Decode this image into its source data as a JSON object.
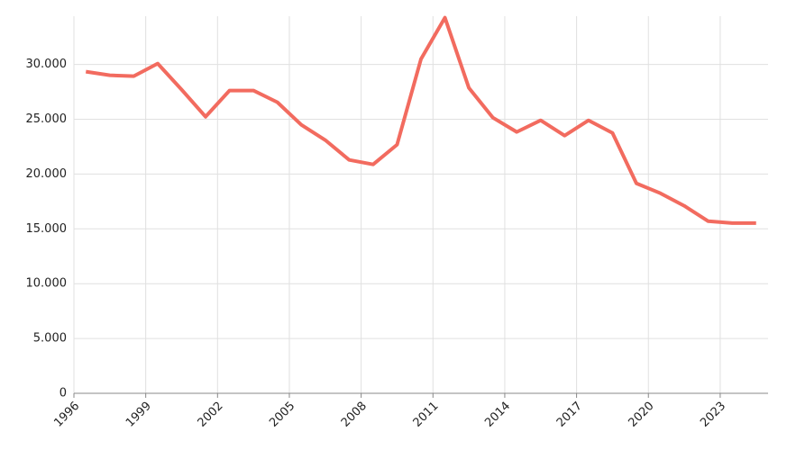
{
  "chart_data": {
    "type": "line",
    "x": [
      1996.5,
      1997.5,
      1998.5,
      1999.5,
      2000.5,
      2001.5,
      2002.5,
      2003.5,
      2004.5,
      2005.5,
      2006.5,
      2007.5,
      2008.5,
      2009.5,
      2010.5,
      2011.5,
      2012.5,
      2013.5,
      2014.5,
      2015.5,
      2016.5,
      2017.5,
      2018.5,
      2019.5,
      2020.5,
      2021.5,
      2022.5,
      2023.5,
      2024.5
    ],
    "series": [
      {
        "color": "#f26b5f",
        "values": [
          29340,
          29010,
          28930,
          30080,
          27700,
          25230,
          27620,
          27620,
          26550,
          24490,
          23100,
          21290,
          20880,
          22680,
          30490,
          34270,
          27860,
          25150,
          23840,
          24900,
          23510,
          24900,
          23750,
          19150,
          18250,
          17100,
          15700,
          15530,
          15530
        ]
      }
    ],
    "xlim": [
      1996,
      2025
    ],
    "xticks": [
      1996,
      1999,
      2002,
      2005,
      2008,
      2011,
      2014,
      2017,
      2020,
      2023
    ],
    "ylim": [
      0,
      34400
    ],
    "yticks": [
      0,
      {
        "value": 5000,
        "label": "5.000"
      },
      {
        "value": 10000,
        "label": "10.000"
      },
      {
        "value": 15000,
        "label": "15.000"
      },
      {
        "value": 20000,
        "label": "20.000"
      },
      {
        "value": 25000,
        "label": "25.000"
      },
      {
        "value": 30000,
        "label": "30.000"
      }
    ],
    "grid": true
  }
}
